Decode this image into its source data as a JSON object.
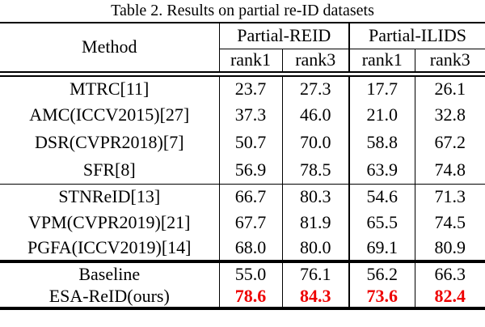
{
  "title": "Table 2. Results on partial re-ID datasets",
  "table": {
    "method_header": "Method",
    "group_headers": [
      {
        "label": "Partial-REID"
      },
      {
        "label": "Partial-ILIDS"
      }
    ],
    "sub_headers": [
      "rank1",
      "rank3",
      "rank1",
      "rank3"
    ],
    "rows": [
      {
        "method": "MTRC[11]",
        "values": [
          "23.7",
          "27.3",
          "17.7",
          "26.1"
        ]
      },
      {
        "method": "AMC(ICCV2015)[27]",
        "values": [
          "37.3",
          "46.0",
          "21.0",
          "32.8"
        ]
      },
      {
        "method": "DSR(CVPR2018)[7]",
        "values": [
          "50.7",
          "70.0",
          "58.8",
          "67.2"
        ]
      },
      {
        "method": "SFR[8]",
        "values": [
          "56.9",
          "78.5",
          "63.9",
          "74.8"
        ]
      },
      {
        "method": "STNReID[13]",
        "values": [
          "66.7",
          "80.3",
          "54.6",
          "71.3"
        ]
      },
      {
        "method": "VPM(CVPR2019)[21]",
        "values": [
          "67.7",
          "81.9",
          "65.5",
          "74.5"
        ]
      },
      {
        "method": "PGFA(ICCV2019)[14]",
        "values": [
          "68.0",
          "80.0",
          "69.1",
          "80.9"
        ]
      },
      {
        "method": "Baseline",
        "values": [
          "55.0",
          "76.1",
          "56.2",
          "66.3"
        ]
      },
      {
        "method": "ESA-ReID(ours)",
        "values": [
          "78.6",
          "84.3",
          "73.6",
          "82.4"
        ]
      }
    ],
    "highlight_row_index": 8,
    "highlight_color": "#ee0000"
  }
}
